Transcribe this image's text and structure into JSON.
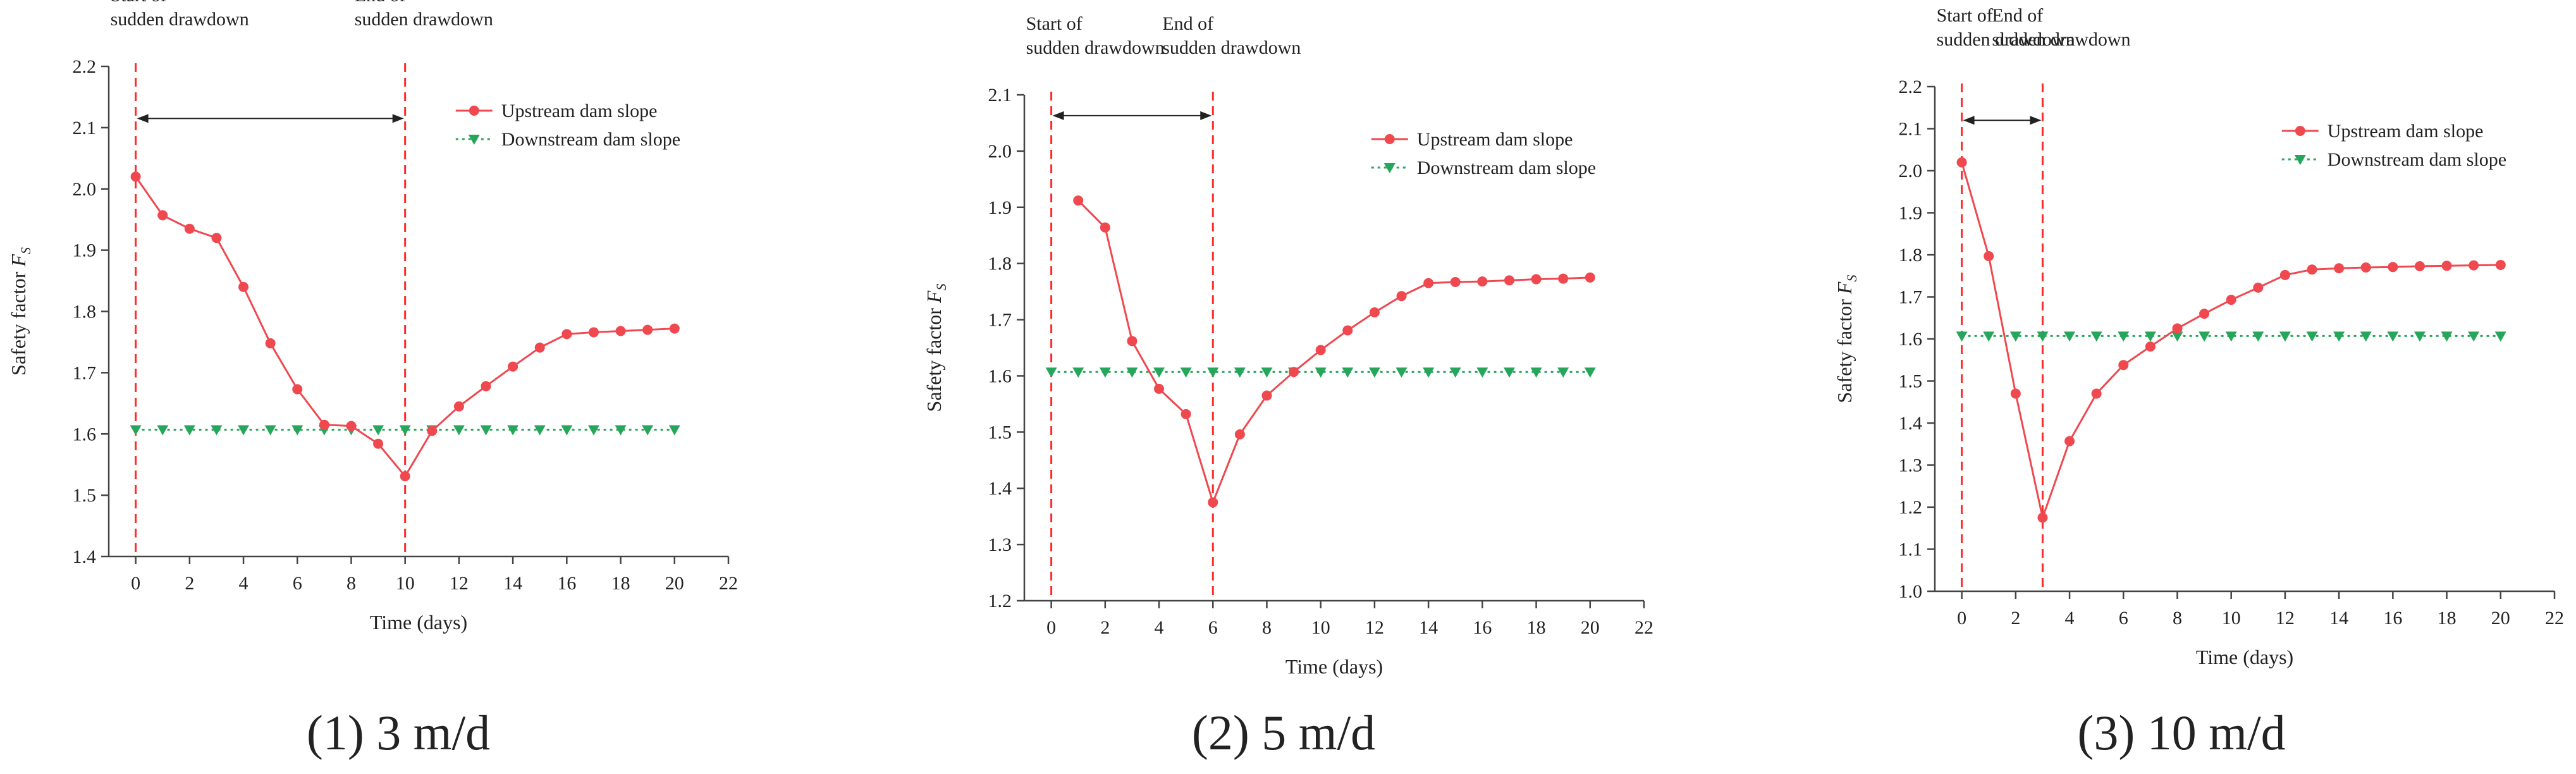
{
  "figure": {
    "captions": [
      "(1) 3 m/d",
      "(2) 5 m/d",
      "(3) 10 m/d"
    ]
  },
  "colors": {
    "upstream": "#f0484f",
    "downstream": "#26a65b",
    "marker_line": "#ff2a2a",
    "axis": "#444444",
    "arrow": "#222222"
  },
  "chart_data": [
    {
      "type": "line",
      "xlabel": "Time (days)",
      "ylabel": "Safety factor",
      "ylabel_symbol": "F",
      "ylabel_sub": "S",
      "xlim": [
        -1,
        22
      ],
      "ylim": [
        1.4,
        2.2
      ],
      "x_ticks": [
        0,
        2,
        4,
        6,
        8,
        10,
        12,
        14,
        16,
        18,
        20,
        22
      ],
      "y_ticks": [
        1.4,
        1.5,
        1.6,
        1.7,
        1.8,
        1.9,
        2.0,
        2.1,
        2.2
      ],
      "annotations": {
        "start_label": [
          "Start of",
          "sudden drawdown"
        ],
        "end_label": [
          "End of",
          "sudden drawdown"
        ],
        "start_x": 0,
        "end_x": 10,
        "arrow_y": 2.115
      },
      "legend_position": "top-right",
      "series": [
        {
          "name": "Upstream dam slope",
          "x": [
            0,
            1,
            2,
            3,
            4,
            5,
            6,
            7,
            8,
            9,
            10,
            11,
            12,
            13,
            14,
            15,
            16,
            17,
            18,
            19,
            20
          ],
          "y": [
            2.02,
            1.957,
            1.935,
            1.92,
            1.84,
            1.748,
            1.673,
            1.615,
            1.613,
            1.584,
            1.531,
            1.605,
            1.645,
            1.678,
            1.71,
            1.741,
            1.763,
            1.766,
            1.768,
            1.77,
            1.772
          ]
        },
        {
          "name": "Downstream dam slope",
          "x": [
            0,
            1,
            2,
            3,
            4,
            5,
            6,
            7,
            8,
            9,
            10,
            11,
            12,
            13,
            14,
            15,
            16,
            17,
            18,
            19,
            20
          ],
          "y": [
            1.607,
            1.607,
            1.607,
            1.607,
            1.607,
            1.607,
            1.607,
            1.607,
            1.607,
            1.607,
            1.607,
            1.607,
            1.607,
            1.607,
            1.607,
            1.607,
            1.607,
            1.607,
            1.607,
            1.607,
            1.607
          ]
        }
      ]
    },
    {
      "type": "line",
      "xlabel": "Time (days)",
      "ylabel": "Safety factor",
      "ylabel_symbol": "F",
      "ylabel_sub": "S",
      "xlim": [
        -1,
        22
      ],
      "ylim": [
        1.2,
        2.1
      ],
      "x_ticks": [
        0,
        2,
        4,
        6,
        8,
        10,
        12,
        14,
        16,
        18,
        20,
        22
      ],
      "y_ticks": [
        1.2,
        1.3,
        1.4,
        1.5,
        1.6,
        1.7,
        1.8,
        1.9,
        2.0,
        2.1
      ],
      "annotations": {
        "start_label": [
          "Start of",
          "sudden drawdown"
        ],
        "end_label": [
          "End of",
          "sudden drawdown"
        ],
        "start_x": 0,
        "end_x": 6,
        "arrow_y": 2.063
      },
      "legend_position": "top-right",
      "series": [
        {
          "name": "Upstream dam slope",
          "x": [
            1,
            2,
            3,
            4,
            5,
            6,
            7,
            8,
            9,
            10,
            11,
            12,
            13,
            14,
            15,
            16,
            17,
            18,
            19,
            20
          ],
          "y": [
            1.912,
            1.864,
            1.662,
            1.577,
            1.532,
            1.375,
            1.496,
            1.565,
            1.607,
            1.646,
            1.681,
            1.713,
            1.742,
            1.765,
            1.767,
            1.768,
            1.77,
            1.772,
            1.773,
            1.775
          ]
        },
        {
          "name": "Downstream dam slope",
          "x": [
            0,
            1,
            2,
            3,
            4,
            5,
            6,
            7,
            8,
            9,
            10,
            11,
            12,
            13,
            14,
            15,
            16,
            17,
            18,
            19,
            20
          ],
          "y": [
            1.607,
            1.607,
            1.607,
            1.607,
            1.607,
            1.607,
            1.607,
            1.607,
            1.607,
            1.607,
            1.607,
            1.607,
            1.607,
            1.607,
            1.607,
            1.607,
            1.607,
            1.607,
            1.607,
            1.607,
            1.607
          ]
        }
      ]
    },
    {
      "type": "line",
      "xlabel": "Time (days)",
      "ylabel": "Safety factor",
      "ylabel_symbol": "F",
      "ylabel_sub": "S",
      "xlim": [
        -1,
        22
      ],
      "ylim": [
        1.0,
        2.2
      ],
      "x_ticks": [
        0,
        2,
        4,
        6,
        8,
        10,
        12,
        14,
        16,
        18,
        20,
        22
      ],
      "y_ticks": [
        1.0,
        1.1,
        1.2,
        1.3,
        1.4,
        1.5,
        1.6,
        1.7,
        1.8,
        1.9,
        2.0,
        2.1,
        2.2
      ],
      "annotations": {
        "start_label": [
          "Start of",
          "sudden drawdown"
        ],
        "end_label": [
          "End of",
          "sudden drawdown"
        ],
        "start_x": 0,
        "end_x": 3,
        "arrow_y": 2.12
      },
      "legend_position": "top-right",
      "series": [
        {
          "name": "Upstream dam slope",
          "x": [
            0,
            1,
            2,
            3,
            4,
            5,
            6,
            7,
            8,
            9,
            10,
            11,
            12,
            13,
            14,
            15,
            16,
            17,
            18,
            19,
            20
          ],
          "y": [
            2.02,
            1.797,
            1.47,
            1.175,
            1.357,
            1.47,
            1.538,
            1.582,
            1.625,
            1.66,
            1.693,
            1.722,
            1.752,
            1.765,
            1.768,
            1.77,
            1.771,
            1.773,
            1.774,
            1.775,
            1.776
          ]
        },
        {
          "name": "Downstream dam slope",
          "x": [
            0,
            1,
            2,
            3,
            4,
            5,
            6,
            7,
            8,
            9,
            10,
            11,
            12,
            13,
            14,
            15,
            16,
            17,
            18,
            19,
            20
          ],
          "y": [
            1.607,
            1.607,
            1.607,
            1.607,
            1.607,
            1.607,
            1.607,
            1.607,
            1.607,
            1.607,
            1.607,
            1.607,
            1.607,
            1.607,
            1.607,
            1.607,
            1.607,
            1.607,
            1.607,
            1.607,
            1.607
          ]
        }
      ]
    }
  ]
}
